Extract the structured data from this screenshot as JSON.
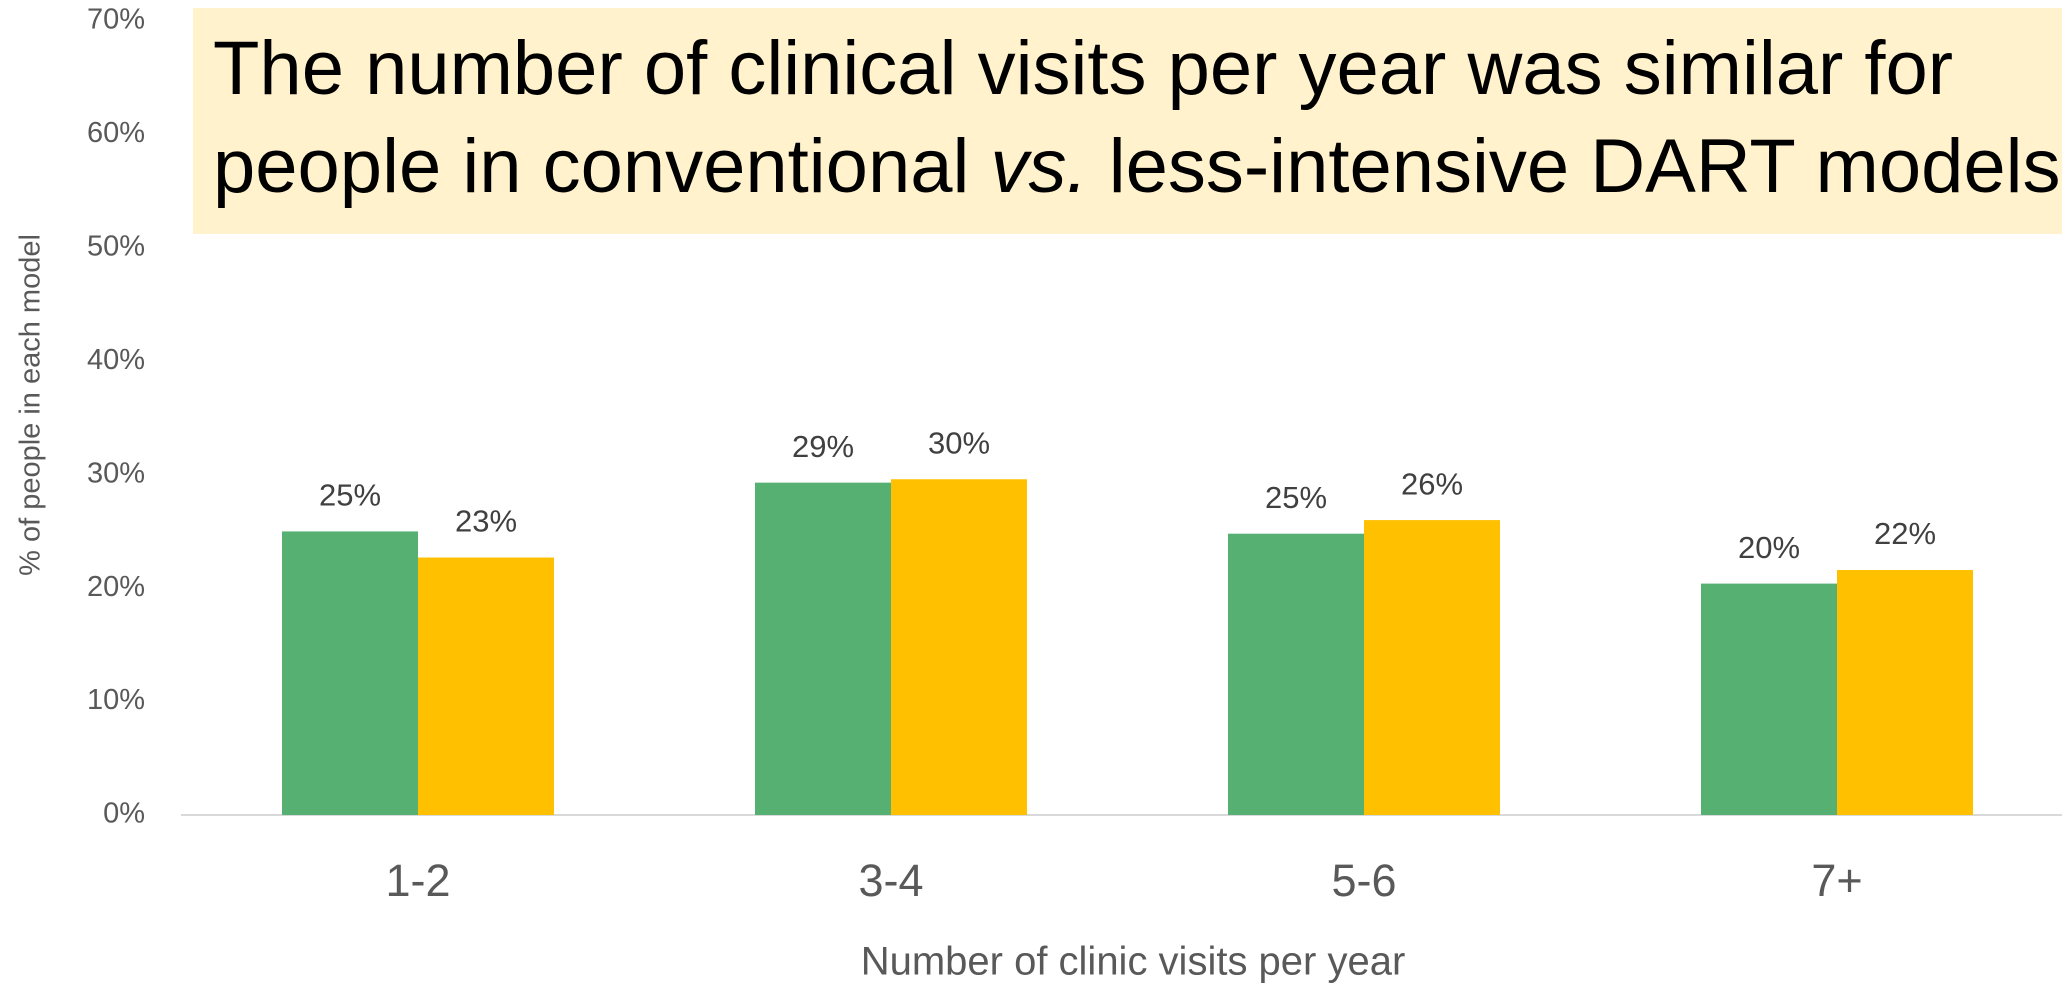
{
  "chart_data": {
    "type": "bar",
    "title": [
      "The number of clinical visits per year was similar for",
      "people in conventional ",
      "vs.",
      " less-intensive DART models"
    ],
    "x_label": "Number of clinic visits per year",
    "y_label": "% of people in each model",
    "categories": [
      "1-2",
      "3-4",
      "5-6",
      "7+"
    ],
    "series": [
      {
        "color": "#55b072",
        "values": [
          25.0,
          29.3,
          24.8,
          20.4
        ],
        "value_labels": [
          "25%",
          "29%",
          "25%",
          "20%"
        ]
      },
      {
        "color": "#ffc000",
        "values": [
          22.7,
          29.6,
          26.0,
          21.6
        ],
        "value_labels": [
          "23%",
          "30%",
          "26%",
          "22%"
        ]
      }
    ],
    "ylim": [
      0,
      70
    ],
    "yticks": [
      {
        "value": 0,
        "label": "0%"
      },
      {
        "value": 10,
        "label": "10%"
      },
      {
        "value": 20,
        "label": "20%"
      },
      {
        "value": 30,
        "label": "30%"
      },
      {
        "value": 40,
        "label": "40%"
      },
      {
        "value": 50,
        "label": "50%"
      },
      {
        "value": 60,
        "label": "60%"
      },
      {
        "value": 70,
        "label": "70%"
      }
    ],
    "grid": false
  }
}
